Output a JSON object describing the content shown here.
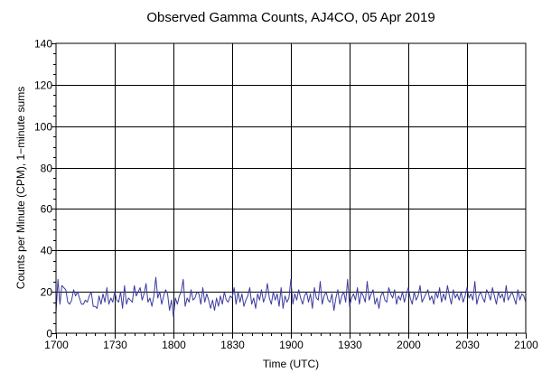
{
  "chart_data": {
    "type": "line",
    "title": "Observed Gamma Counts, AJ4CO, 05 Apr 2019",
    "xlabel": "Time (UTC)",
    "ylabel": "Counts per Minute (CPM), 1−minute sums",
    "xlim": [
      0,
      240
    ],
    "ylim": [
      0,
      140
    ],
    "x_ticks": [
      {
        "pos": 0,
        "label": "1700"
      },
      {
        "pos": 30,
        "label": "1730"
      },
      {
        "pos": 60,
        "label": "1800"
      },
      {
        "pos": 90,
        "label": "1830"
      },
      {
        "pos": 120,
        "label": "1900"
      },
      {
        "pos": 150,
        "label": "1930"
      },
      {
        "pos": 180,
        "label": "2000"
      },
      {
        "pos": 210,
        "label": "2030"
      },
      {
        "pos": 240,
        "label": "2100"
      }
    ],
    "y_ticks": [
      0,
      20,
      40,
      60,
      80,
      100,
      120,
      140
    ],
    "grid": true,
    "series": [
      {
        "color": "#3a3aa0",
        "values": [
          10,
          26,
          14,
          23,
          22,
          21,
          15,
          14,
          16,
          21,
          18,
          20,
          17,
          14,
          14,
          16,
          15,
          18,
          20,
          13,
          13,
          12,
          18,
          14,
          19,
          15,
          22,
          14,
          17,
          15,
          20,
          16,
          15,
          20,
          12,
          23,
          14,
          17,
          16,
          15,
          23,
          18,
          20,
          22,
          16,
          19,
          24,
          15,
          17,
          13,
          18,
          27,
          17,
          20,
          14,
          18,
          21,
          19,
          11,
          16,
          8,
          17,
          14,
          18,
          20,
          26,
          13,
          17,
          15,
          21,
          16,
          17,
          20,
          19,
          14,
          22,
          15,
          19,
          16,
          12,
          16,
          11,
          17,
          13,
          18,
          14,
          20,
          16,
          15,
          18,
          17,
          22,
          14,
          20,
          15,
          19,
          13,
          16,
          18,
          22,
          14,
          17,
          12,
          19,
          16,
          21,
          15,
          18,
          24,
          17,
          14,
          20,
          16,
          19,
          13,
          22,
          12,
          18,
          15,
          17,
          26,
          14,
          19,
          16,
          21,
          17,
          14,
          18,
          20,
          15,
          19,
          12,
          22,
          17,
          16,
          25,
          14,
          18,
          20,
          16,
          15,
          19,
          11,
          17,
          21,
          14,
          18,
          20,
          15,
          26,
          13,
          17,
          19,
          16,
          22,
          14,
          20,
          18,
          15,
          25,
          16,
          19,
          21,
          14,
          17,
          12,
          18,
          20,
          16,
          15,
          22,
          19,
          17,
          21,
          14,
          18,
          16,
          20,
          15,
          19,
          22,
          17,
          14,
          20,
          16,
          18,
          23,
          15,
          17,
          19,
          21,
          16,
          18,
          14,
          20,
          17,
          22,
          15,
          19,
          16,
          23,
          18,
          14,
          21,
          17,
          19,
          16,
          20,
          15,
          18,
          22,
          17,
          19,
          16,
          25,
          14,
          18,
          20,
          17,
          15,
          21,
          19,
          16,
          22,
          18,
          14,
          20,
          17,
          19,
          15,
          23,
          16,
          18,
          20,
          17,
          14,
          21,
          16,
          19,
          18,
          15
        ]
      }
    ]
  }
}
